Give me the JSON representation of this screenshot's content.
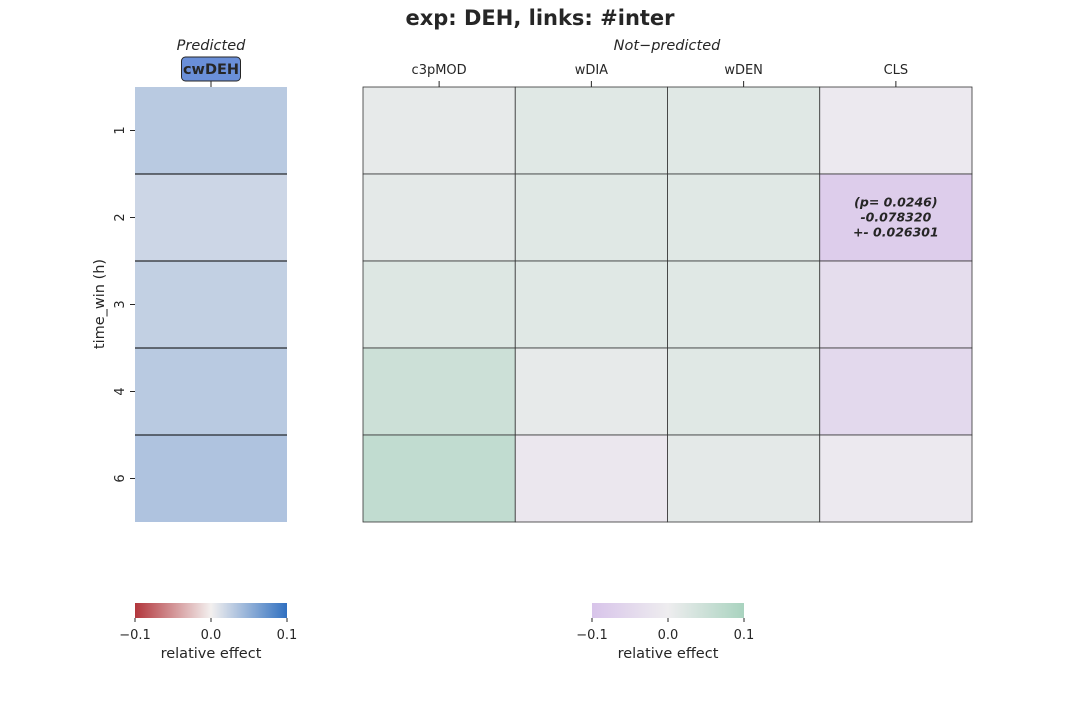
{
  "chart_data": {
    "type": "heatmap",
    "title": "exp: DEH, links: #inter",
    "ylabel": "time_win (h)",
    "rows": [
      "1",
      "2",
      "3",
      "4",
      "6"
    ],
    "predicted": {
      "group_title": "Predicted",
      "columns": [
        "cwDEH"
      ],
      "badge_color": "#6a8fd8",
      "values": [
        [
          0.03
        ],
        [
          0.02
        ],
        [
          0.025
        ],
        [
          0.03
        ],
        [
          0.035
        ]
      ],
      "colormap": [
        "#b2363c",
        "#f3f0ef",
        "#3070c0"
      ],
      "vmin": -0.1,
      "vmax": 0.1
    },
    "not_predicted": {
      "group_title": "Not−predicted",
      "columns": [
        "c3pMOD",
        "wDIA",
        "wDEN",
        "CLS"
      ],
      "values": [
        [
          0.01,
          0.02,
          0.02,
          -0.01
        ],
        [
          0.015,
          0.02,
          0.02,
          -0.078
        ],
        [
          0.025,
          0.02,
          0.02,
          -0.04
        ],
        [
          0.05,
          0.01,
          0.02,
          -0.05
        ],
        [
          0.065,
          -0.015,
          0.015,
          -0.01
        ]
      ],
      "annotation": {
        "row": 1,
        "col": 3,
        "lines": [
          "(p= 0.0246)",
          "-0.078320",
          "+- 0.026301"
        ]
      },
      "colormap": [
        "#d8c4ea",
        "#eeedef",
        "#a9d3bf"
      ],
      "vmin": -0.1,
      "vmax": 0.1
    },
    "colorbars": [
      {
        "ticks": [
          "−0.1",
          "0.0",
          "0.1"
        ],
        "label": "relative effect"
      },
      {
        "ticks": [
          "−0.1",
          "0.0",
          "0.1"
        ],
        "label": "relative effect"
      }
    ]
  }
}
